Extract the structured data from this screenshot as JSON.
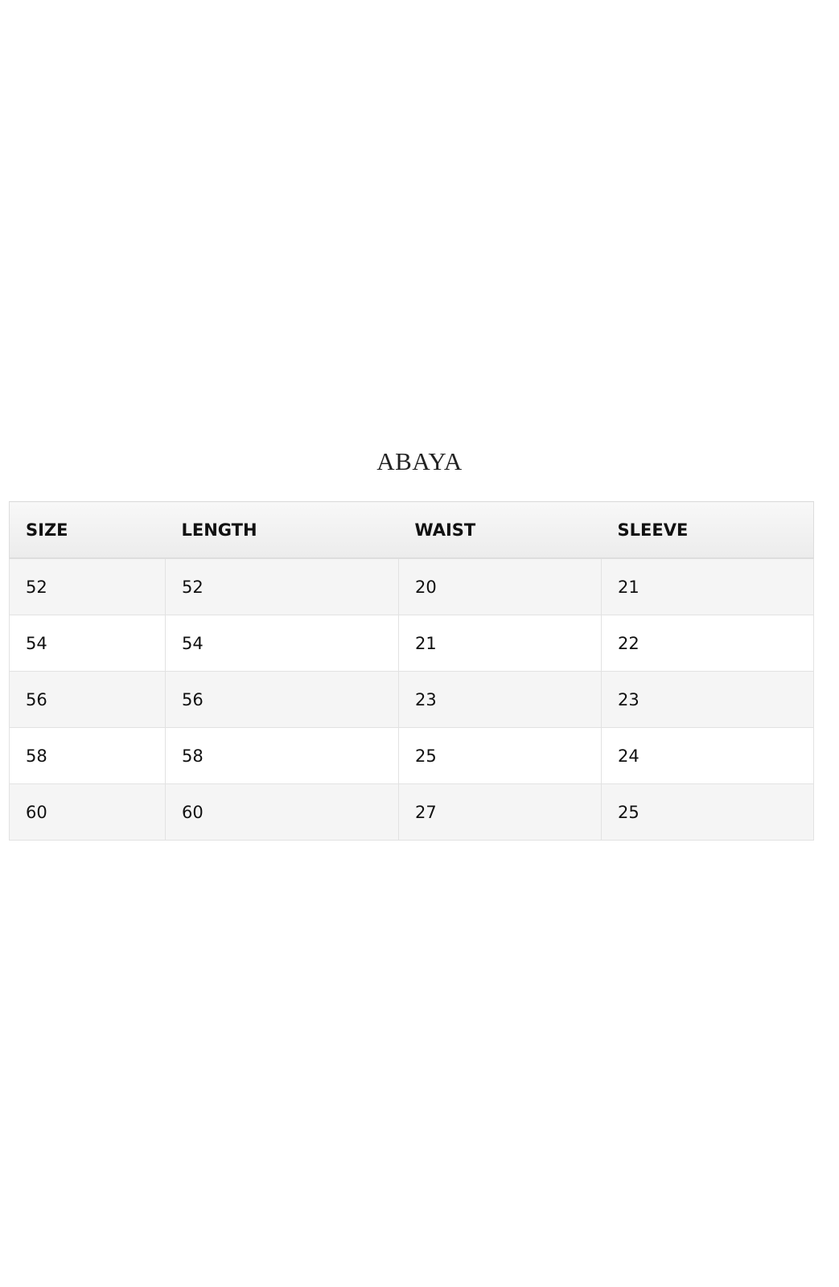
{
  "title": "ABAYA",
  "table": {
    "headers": [
      "SIZE",
      "LENGTH",
      "WAIST",
      "SLEEVE"
    ],
    "rows": [
      [
        "52",
        "52",
        "20",
        "21"
      ],
      [
        "54",
        "54",
        "21",
        "22"
      ],
      [
        "56",
        "56",
        "23",
        "23"
      ],
      [
        "58",
        "58",
        "25",
        "24"
      ],
      [
        "60",
        "60",
        "27",
        "25"
      ]
    ]
  }
}
